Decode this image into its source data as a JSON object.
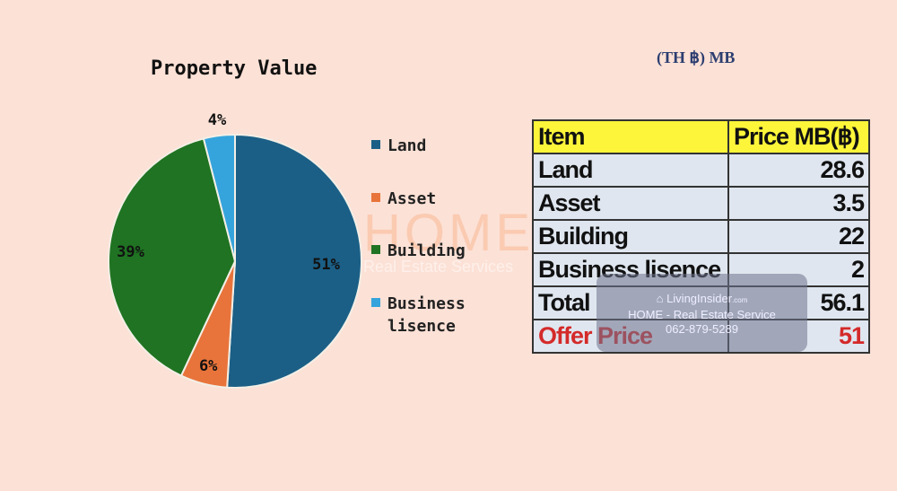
{
  "chart_data": {
    "type": "pie",
    "title": "Property Value",
    "categories": [
      "Land",
      "Asset",
      "Building",
      "Business lisence"
    ],
    "values": [
      51,
      6,
      39,
      4
    ],
    "labels": [
      "51%",
      "6%",
      "39%",
      "4%"
    ],
    "colors": [
      "#1b5f86",
      "#e8743b",
      "#1f7322",
      "#35a4dc"
    ],
    "legend_position": "right"
  },
  "unit_note": "(TH ฿)  MB",
  "table": {
    "headers": [
      "Item",
      "Price MB(฿)"
    ],
    "rows": [
      [
        "Land",
        "28.6"
      ],
      [
        "Asset",
        "3.5"
      ],
      [
        "Building",
        "22"
      ],
      [
        "Business lisence",
        "2"
      ],
      [
        "Total",
        "56.1"
      ]
    ],
    "offer": [
      "Offer Price",
      "51"
    ]
  },
  "watermark": {
    "home": "HOME",
    "sub": "Real Estate Services",
    "brand": "LivingInsider",
    "brand_suffix": ".com",
    "line1": "HOME - Real Estate Service",
    "phone": "062-879-5289"
  }
}
